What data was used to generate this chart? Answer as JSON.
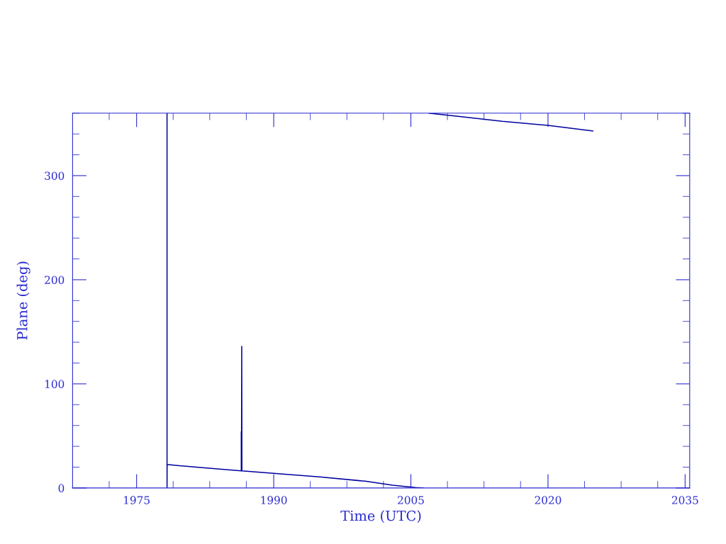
{
  "chart_data": {
    "type": "line",
    "xlabel": "Time (UTC)",
    "ylabel": "Plane (deg)",
    "x": [
      1978.33,
      1978.33,
      1978.34,
      1982,
      1986.45,
      1986.45,
      1986.47,
      1986.5,
      1986.52,
      1990,
      1995,
      2000,
      2003,
      2005.5,
      2006.4,
      2006.7,
      2007.0,
      2010,
      2015,
      2020,
      2024.9
    ],
    "series": [
      {
        "color": "#0000a0",
        "values": [
          360,
          0,
          22.5,
          19.6,
          16.5,
          54,
          16.5,
          136,
          16.4,
          14.0,
          10.6,
          6.5,
          2.7,
          0.5,
          0,
          null,
          360,
          357.1,
          352.2,
          348.3,
          342.9
        ]
      }
    ],
    "xlim": [
      1968,
      2035.5
    ],
    "xticks": [
      {
        "value": 1972,
        "label": null
      },
      1975,
      {
        "value": 1979,
        "label": null
      },
      {
        "value": 1983,
        "label": null
      },
      {
        "value": 1987,
        "label": null
      },
      1990,
      {
        "value": 1994,
        "label": null
      },
      {
        "value": 1998,
        "label": null
      },
      {
        "value": 2002,
        "label": null
      },
      2005,
      {
        "value": 2009,
        "label": null
      },
      {
        "value": 2013,
        "label": null
      },
      {
        "value": 2017,
        "label": null
      },
      2020,
      {
        "value": 2024,
        "label": null
      },
      {
        "value": 2028,
        "label": null
      },
      {
        "value": 2032,
        "label": null
      },
      2035
    ],
    "ylim": [
      0,
      360
    ],
    "yticks": [
      0,
      {
        "value": 20,
        "label": null
      },
      {
        "value": 40,
        "label": null
      },
      {
        "value": 60,
        "label": null
      },
      {
        "value": 80,
        "label": null
      },
      100,
      {
        "value": 120,
        "label": null
      },
      {
        "value": 140,
        "label": null
      },
      {
        "value": 160,
        "label": null
      },
      {
        "value": 180,
        "label": null
      },
      200,
      {
        "value": 220,
        "label": null
      },
      {
        "value": 240,
        "label": null
      },
      {
        "value": 260,
        "label": null
      },
      {
        "value": 280,
        "label": null
      },
      300,
      {
        "value": 320,
        "label": null
      },
      {
        "value": 340,
        "label": null
      },
      {
        "value": 360,
        "label": null
      }
    ],
    "grid": false,
    "legend": false
  }
}
